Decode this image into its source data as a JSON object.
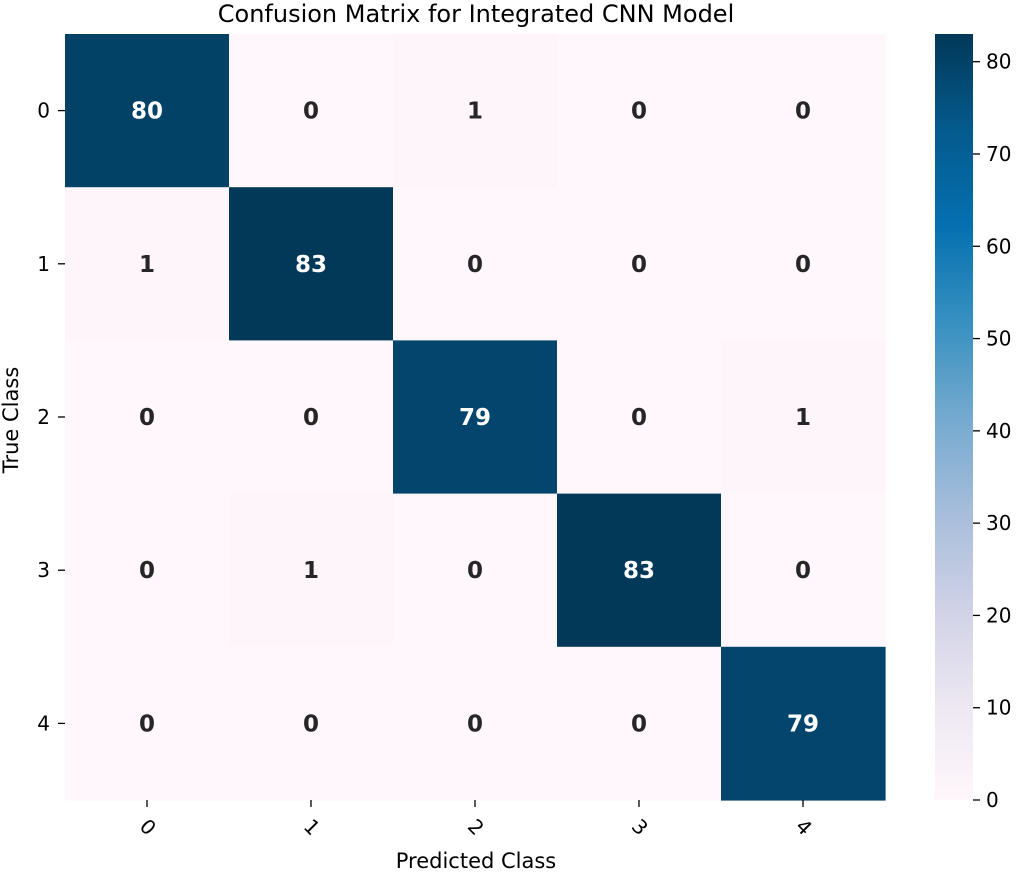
{
  "chart_data": {
    "type": "heatmap",
    "title": "Confusion Matrix for Integrated CNN Model",
    "xlabel": "Predicted Class",
    "ylabel": "True Class",
    "x_categories": [
      "0",
      "1",
      "2",
      "3",
      "4"
    ],
    "y_categories": [
      "0",
      "1",
      "2",
      "3",
      "4"
    ],
    "values": [
      [
        80,
        0,
        1,
        0,
        0
      ],
      [
        1,
        83,
        0,
        0,
        0
      ],
      [
        0,
        0,
        79,
        0,
        1
      ],
      [
        0,
        1,
        0,
        83,
        0
      ],
      [
        0,
        0,
        0,
        0,
        79
      ]
    ],
    "colormap": "PuBu",
    "colorbar": {
      "range": [
        0,
        83
      ],
      "ticks": [
        0,
        10,
        20,
        30,
        40,
        50,
        60,
        70,
        80
      ],
      "tick_labels": [
        "0",
        "10",
        "20",
        "30",
        "40",
        "50",
        "60",
        "70",
        "80"
      ]
    },
    "annotation_colors": {
      "light": "#ffffff",
      "dark": "#262626"
    }
  }
}
